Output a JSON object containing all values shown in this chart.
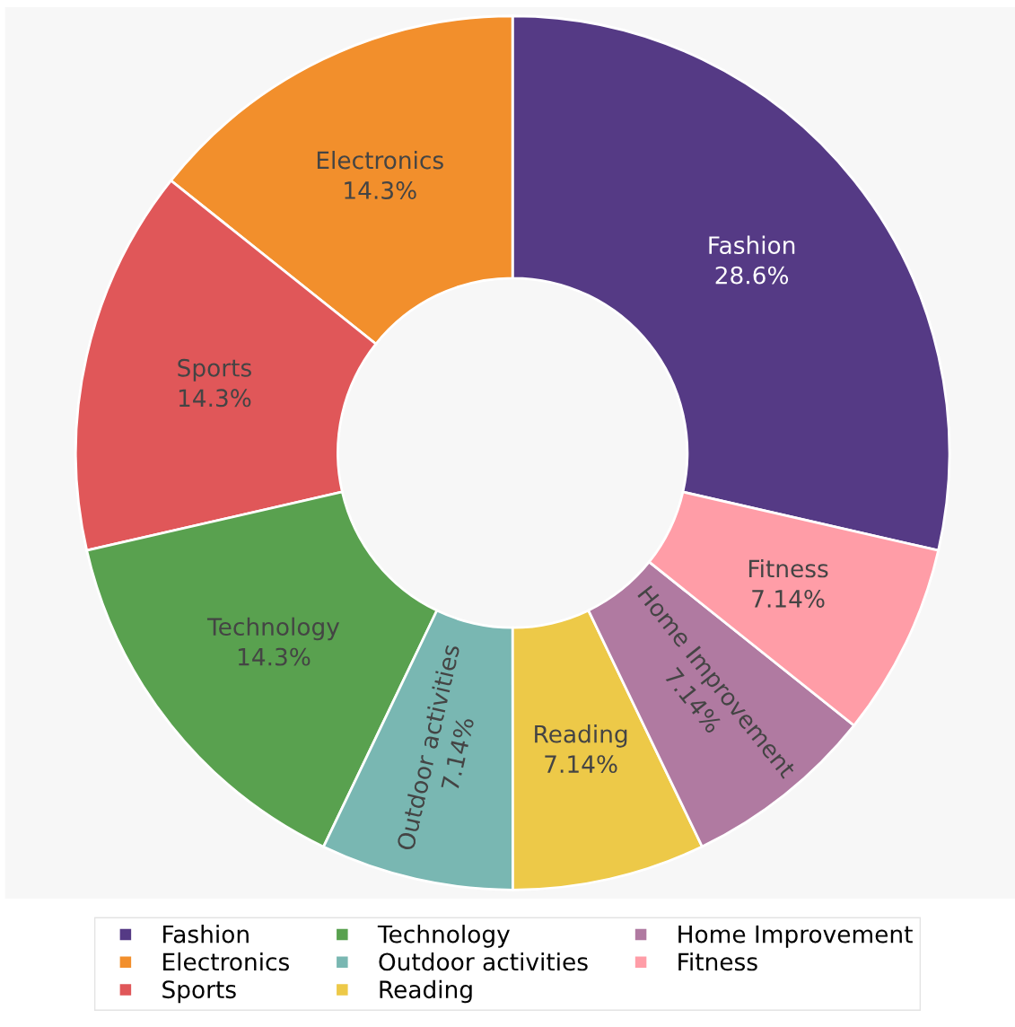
{
  "chart_data": {
    "type": "donut",
    "categories": [
      "Fashion",
      "Electronics",
      "Sports",
      "Technology",
      "Outdoor activities",
      "Reading",
      "Home Improvement",
      "Fitness"
    ],
    "values": [
      28.6,
      14.3,
      14.3,
      14.3,
      7.14,
      7.14,
      7.14,
      7.14
    ],
    "value_labels": [
      "28.6%",
      "14.3%",
      "14.3%",
      "14.3%",
      "7.14%",
      "7.14%",
      "7.14%",
      "7.14%"
    ],
    "colors": [
      "#553a85",
      "#f28f2c",
      "#e05759",
      "#59a14f",
      "#79b7b2",
      "#edc948",
      "#b07aa1",
      "#ff9da7"
    ],
    "legend": "bottom"
  }
}
